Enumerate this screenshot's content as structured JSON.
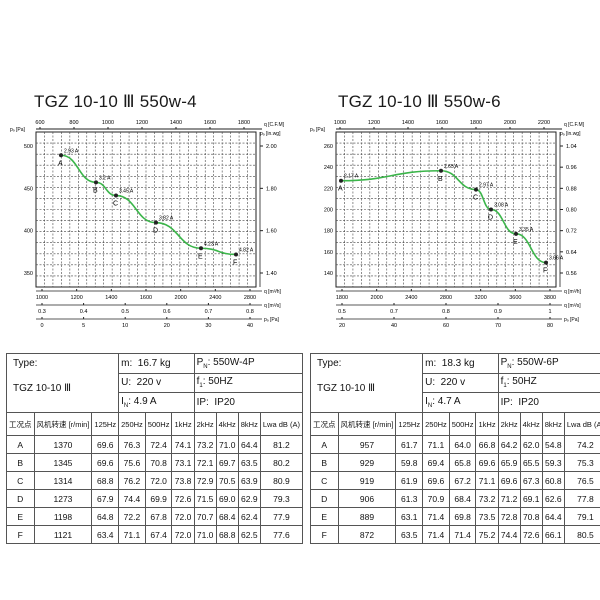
{
  "charts": [
    {
      "title": "TGZ 10-10 Ⅲ 550w-4",
      "top_axis": {
        "unit": "q [C.F.M]",
        "ticks": [
          "600",
          "800",
          "1000",
          "1200",
          "1400",
          "1600",
          "1800"
        ]
      },
      "left_axis": {
        "unit": "pₔ [Pa]",
        "ticks": [
          "500",
          "450",
          "400",
          "350"
        ]
      },
      "right_axis": {
        "unit": "pₔ [in.wg]",
        "ticks": [
          "2.00",
          "1.80",
          "1.60",
          "1.40"
        ]
      },
      "bottom_axis1": {
        "unit": "q [m³/h]",
        "ticks": [
          "1000",
          "1200",
          "1400",
          "1600",
          "2000",
          "2400",
          "2800"
        ]
      },
      "bottom_axis2": {
        "unit": "q [m³/s]",
        "ticks": [
          "0.3",
          "0.4",
          "0.5",
          "0.6",
          "0.7",
          "0.8"
        ]
      },
      "bottom_axis3": {
        "unit": "pₔ [Pa]",
        "ticks": [
          "0",
          "5",
          "10",
          "20",
          "30",
          "40"
        ]
      },
      "points": [
        {
          "label": "A",
          "current": "2.93 A"
        },
        {
          "label": "B",
          "current": "3.2 A"
        },
        {
          "label": "C",
          "current": "3.45 A"
        },
        {
          "label": "D",
          "current": "3.82 A"
        },
        {
          "label": "E",
          "current": "4.23 A"
        },
        {
          "label": "F",
          "current": "4.82 A"
        }
      ]
    },
    {
      "title": "TGZ 10-10 Ⅲ 550w-6",
      "top_axis": {
        "unit": "q [C.F.M]",
        "ticks": [
          "1000",
          "1200",
          "1400",
          "1600",
          "1800",
          "2000",
          "2200"
        ]
      },
      "left_axis": {
        "unit": "pₔ [Pa]",
        "ticks": [
          "260",
          "240",
          "220",
          "200",
          "180",
          "160",
          "140"
        ]
      },
      "right_axis": {
        "unit": "pₔ [in.wg]",
        "ticks": [
          "1.04",
          "0.96",
          "0.88",
          "0.80",
          "0.72",
          "0.64",
          "0.56"
        ]
      },
      "bottom_axis1": {
        "unit": "q [m³/h]",
        "ticks": [
          "1800",
          "2000",
          "2400",
          "2800",
          "3200",
          "3600",
          "3800"
        ]
      },
      "bottom_axis2": {
        "unit": "q [m³/s]",
        "ticks": [
          "0.5",
          "0.7",
          "0.8",
          "0.9",
          "1"
        ]
      },
      "bottom_axis3": {
        "unit": "pₔ [Pa]",
        "ticks": [
          "20",
          "40",
          "60",
          "70",
          "80"
        ]
      },
      "points": [
        {
          "label": "A",
          "current": "2.17 A"
        },
        {
          "label": "B",
          "current": "2.65 A"
        },
        {
          "label": "C",
          "current": "2.97 A"
        },
        {
          "label": "D",
          "current": "3.08 A"
        },
        {
          "label": "E",
          "current": "3.35 A"
        },
        {
          "label": "F",
          "current": "3.66 A"
        }
      ]
    }
  ],
  "chart_data": [
    {
      "type": "line",
      "title": "TGZ 10-10 Ⅲ 550w-4",
      "xlabel": "q [m³/h]",
      "ylabel": "pₔ [Pa]",
      "xlim": [
        800,
        3000
      ],
      "ylim": [
        320,
        520
      ],
      "x": [
        1050,
        1400,
        1600,
        2000,
        2450,
        2800
      ],
      "series": [
        {
          "values": [
            490,
            455,
            438,
            403,
            370,
            362
          ]
        }
      ],
      "point_labels": [
        "A",
        "B",
        "C",
        "D",
        "E",
        "F"
      ],
      "annotations": [
        "2.93 A",
        "3.2 A",
        "3.45 A",
        "3.82 A",
        "4.23 A",
        "4.82 A"
      ]
    },
    {
      "type": "line",
      "title": "TGZ 10-10 Ⅲ 550w-6",
      "xlabel": "q [m³/h]",
      "ylabel": "pₔ [Pa]",
      "xlim": [
        1700,
        3900
      ],
      "ylim": [
        130,
        270
      ],
      "x": [
        1750,
        2750,
        3100,
        3250,
        3500,
        3800
      ],
      "series": [
        {
          "values": [
            226,
            235,
            218,
            200,
            178,
            152
          ]
        }
      ],
      "point_labels": [
        "A",
        "B",
        "C",
        "D",
        "E",
        "F"
      ],
      "annotations": [
        "2.17 A",
        "2.65 A",
        "2.97 A",
        "3.08 A",
        "3.35 A",
        "3.66 A"
      ]
    }
  ],
  "tables": [
    {
      "type_label": "Type:",
      "type_value": "TGZ 10-10 Ⅲ",
      "m_label": "m:",
      "m_value": "16.7 kg",
      "pn_label": "P",
      "pn_sub": "N",
      "pn_value": "550W-4P",
      "u_label": "U:",
      "u_value": "220 v",
      "f_label": "f",
      "f_sub": "1",
      "f_value": "50HZ",
      "i_label": "I",
      "i_sub": "N",
      "i_value": "4.9 A",
      "ip_label": "IP:",
      "ip_value": "IP20",
      "headers": [
        "工况点",
        "风机转速 [r/min]",
        "125Hz",
        "250Hz",
        "500Hz",
        "1kHz",
        "2kHz",
        "4kHz",
        "8kHz",
        "Lwa dB (A)"
      ],
      "rows": [
        [
          "A",
          "1370",
          "69.6",
          "76.3",
          "72.4",
          "74.1",
          "73.2",
          "71.0",
          "64.4",
          "81.2"
        ],
        [
          "B",
          "1345",
          "69.6",
          "75.6",
          "70.8",
          "73.1",
          "72.1",
          "69.7",
          "63.5",
          "80.2"
        ],
        [
          "C",
          "1314",
          "68.8",
          "76.2",
          "72.0",
          "73.8",
          "72.9",
          "70.5",
          "63.9",
          "80.9"
        ],
        [
          "D",
          "1273",
          "67.9",
          "74.4",
          "69.9",
          "72.6",
          "71.5",
          "69.0",
          "62.9",
          "79.3"
        ],
        [
          "E",
          "1198",
          "64.8",
          "72.2",
          "67.8",
          "72.0",
          "70.7",
          "68.4",
          "62.4",
          "77.9"
        ],
        [
          "F",
          "1121",
          "63.4",
          "71.1",
          "67.4",
          "72.0",
          "71.0",
          "68.8",
          "62.5",
          "77.6"
        ]
      ]
    },
    {
      "type_label": "Type:",
      "type_value": "TGZ 10-10 Ⅲ",
      "m_label": "m:",
      "m_value": "18.3 kg",
      "pn_label": "P",
      "pn_sub": "N",
      "pn_value": "550W-6P",
      "u_label": "U:",
      "u_value": "220 v",
      "f_label": "f",
      "f_sub": "1",
      "f_value": "50HZ",
      "i_label": "I",
      "i_sub": "N",
      "i_value": "4.7 A",
      "ip_label": "IP:",
      "ip_value": "IP20",
      "headers": [
        "工况点",
        "风机转速 [r/min]",
        "125Hz",
        "250Hz",
        "500Hz",
        "1kHz",
        "2kHz",
        "4kHz",
        "8kHz",
        "Lwa dB (A)"
      ],
      "rows": [
        [
          "A",
          "957",
          "61.7",
          "71.1",
          "64.0",
          "66.8",
          "64.2",
          "62.0",
          "54.8",
          "74.2"
        ],
        [
          "B",
          "929",
          "59.8",
          "69.4",
          "65.8",
          "69.6",
          "65.9",
          "65.5",
          "59.3",
          "75.3"
        ],
        [
          "C",
          "919",
          "61.9",
          "69.6",
          "67.2",
          "71.1",
          "69.6",
          "67.3",
          "60.8",
          "76.5"
        ],
        [
          "D",
          "906",
          "61.3",
          "70.9",
          "68.4",
          "73.2",
          "71.2",
          "69.1",
          "62.6",
          "77.8"
        ],
        [
          "E",
          "889",
          "63.1",
          "71.4",
          "69.8",
          "73.5",
          "72.8",
          "70.8",
          "64.4",
          "79.1"
        ],
        [
          "F",
          "872",
          "63.5",
          "71.4",
          "71.4",
          "75.2",
          "74.4",
          "72.6",
          "66.1",
          "80.5"
        ]
      ]
    }
  ],
  "colors": {
    "curve": "#3bb54a",
    "grid": "#333333",
    "point": "#222222"
  }
}
